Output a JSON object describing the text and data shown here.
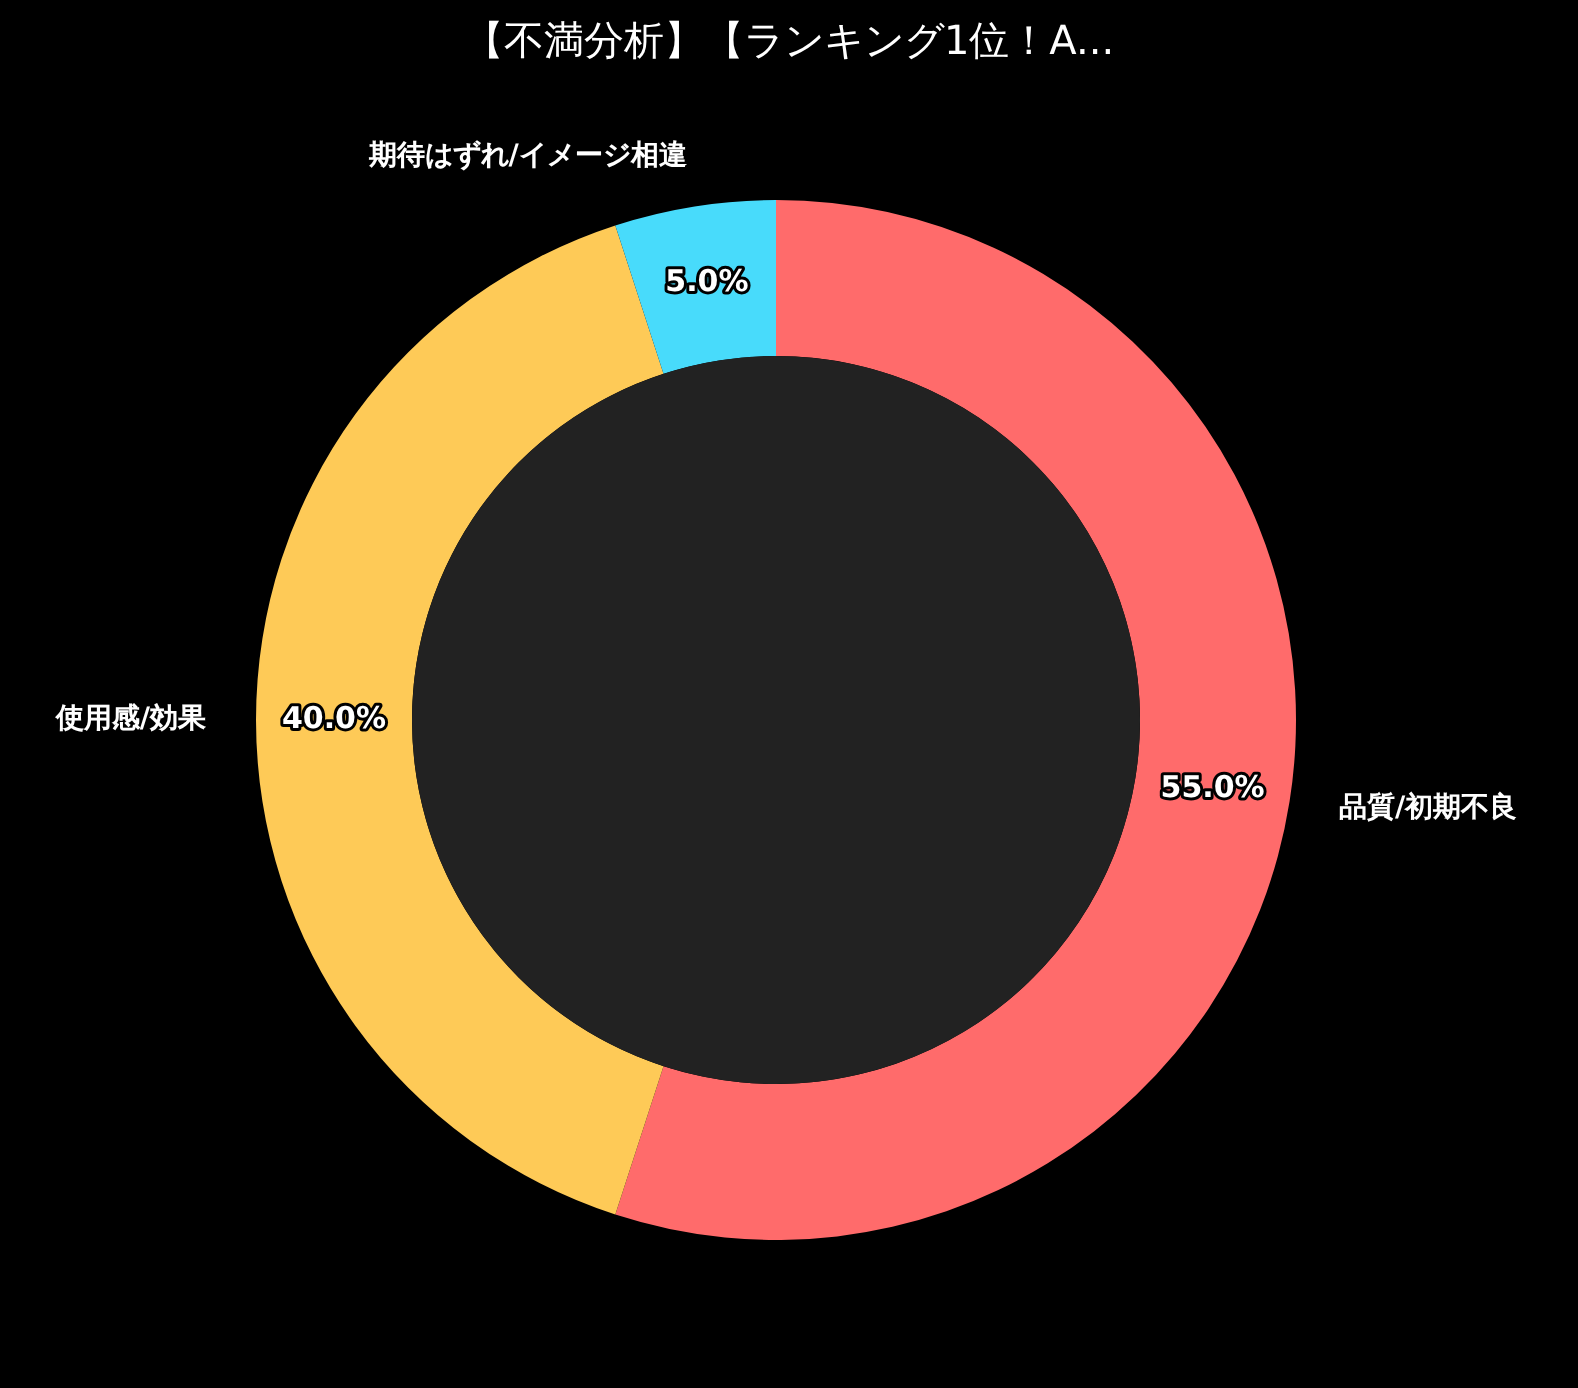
{
  "chart_data": {
    "type": "donut",
    "title": "【不満分析】【ランキング1位！A...",
    "categories": [
      "品質/初期不良",
      "使用感/効果",
      "期待はずれ/イメージ相違"
    ],
    "values": [
      55,
      40,
      5
    ],
    "colors": [
      "#ff6b6b",
      "#feca57",
      "#48dbfb"
    ],
    "value_labels": [
      "55.0%",
      "40.0%",
      "5.0%"
    ],
    "legend": false
  }
}
